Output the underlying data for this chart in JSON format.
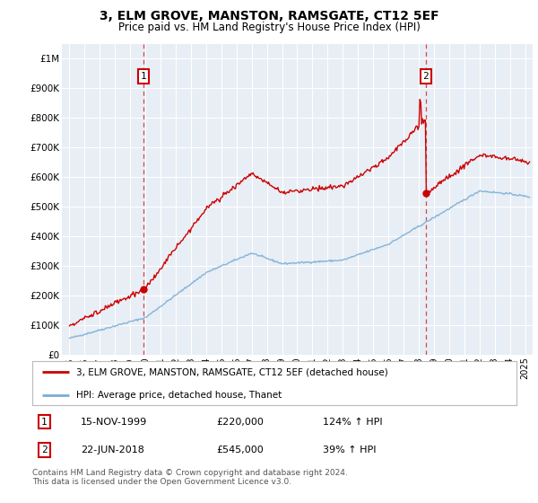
{
  "title": "3, ELM GROVE, MANSTON, RAMSGATE, CT12 5EF",
  "subtitle": "Price paid vs. HM Land Registry's House Price Index (HPI)",
  "legend_line1": "3, ELM GROVE, MANSTON, RAMSGATE, CT12 5EF (detached house)",
  "legend_line2": "HPI: Average price, detached house, Thanet",
  "annotation1_date": "15-NOV-1999",
  "annotation1_price": "£220,000",
  "annotation1_hpi": "124% ↑ HPI",
  "annotation1_year": 1999.88,
  "annotation1_value": 220000,
  "annotation2_date": "22-JUN-2018",
  "annotation2_price": "£545,000",
  "annotation2_hpi": "39% ↑ HPI",
  "annotation2_year": 2018.47,
  "annotation2_value": 545000,
  "footer": "Contains HM Land Registry data © Crown copyright and database right 2024.\nThis data is licensed under the Open Government Licence v3.0.",
  "background_color": "#e8eef5",
  "fig_bg_color": "#ffffff",
  "red_color": "#cc0000",
  "blue_color": "#7aaed6",
  "ylim": [
    0,
    1050000
  ],
  "xlim": [
    1994.5,
    2025.5
  ],
  "yticks": [
    0,
    100000,
    200000,
    300000,
    400000,
    500000,
    600000,
    700000,
    800000,
    900000,
    1000000
  ],
  "ylabels": [
    "£0",
    "£100K",
    "£200K",
    "£300K",
    "£400K",
    "£500K",
    "£600K",
    "£700K",
    "£800K",
    "£900K",
    "£1M"
  ]
}
